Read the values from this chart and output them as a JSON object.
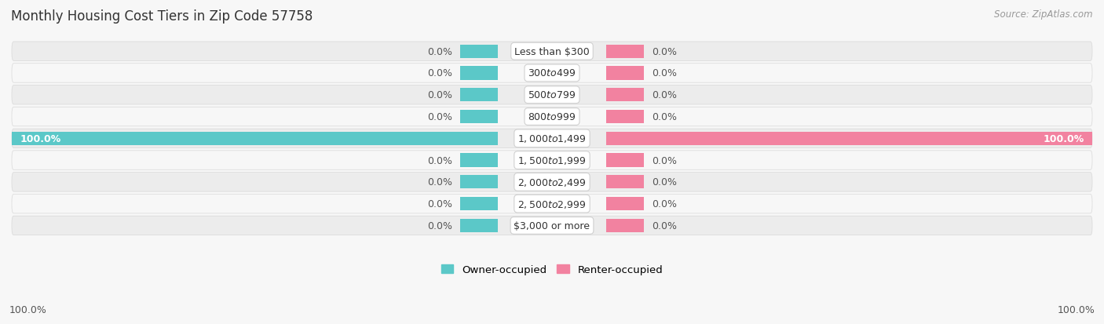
{
  "title": "Monthly Housing Cost Tiers in Zip Code 57758",
  "source": "Source: ZipAtlas.com",
  "categories": [
    "Less than $300",
    "$300 to $499",
    "$500 to $799",
    "$800 to $999",
    "$1,000 to $1,499",
    "$1,500 to $1,999",
    "$2,000 to $2,499",
    "$2,500 to $2,999",
    "$3,000 or more"
  ],
  "owner_values": [
    0.0,
    0.0,
    0.0,
    0.0,
    100.0,
    0.0,
    0.0,
    0.0,
    0.0
  ],
  "renter_values": [
    0.0,
    0.0,
    0.0,
    0.0,
    100.0,
    0.0,
    0.0,
    0.0,
    0.0
  ],
  "owner_color": "#5bc8c8",
  "renter_color": "#f282a0",
  "owner_label": "Owner-occupied",
  "renter_label": "Renter-occupied",
  "background_color": "#f7f7f7",
  "row_even_color": "#ececec",
  "row_odd_color": "#f7f7f7",
  "title_fontsize": 12,
  "source_fontsize": 8.5,
  "label_fontsize": 9,
  "xlim": 100,
  "bar_height": 0.62,
  "stub_size": 7.0,
  "legend_marker_size": 14
}
